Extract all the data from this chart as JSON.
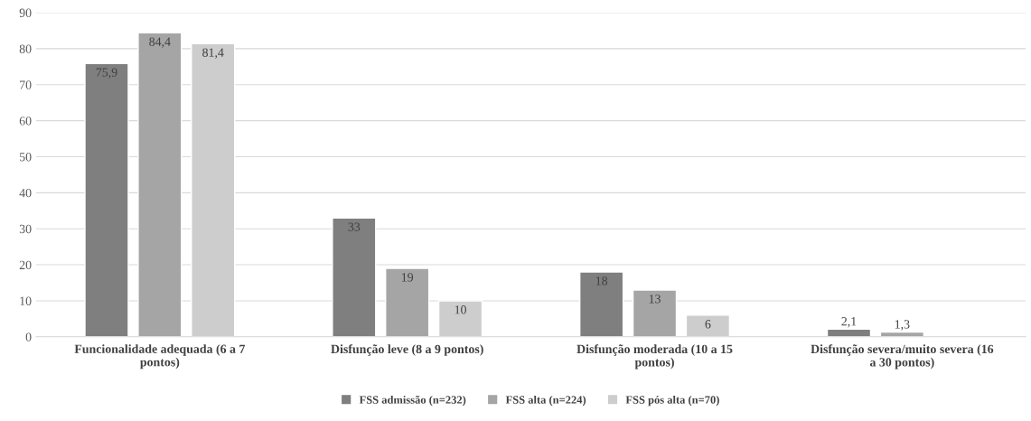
{
  "chart_data": {
    "type": "bar",
    "categories": [
      "Funcionalidade adequada (6 a 7 pontos)",
      "Disfunção leve (8 a 9 pontos)",
      "Disfunção moderada (10 a 15 pontos)",
      "Disfunção severa/muito severa (16 a 30 pontos)"
    ],
    "series": [
      {
        "name": "FSS admissão (n=232)",
        "color": "#7f7f7f",
        "values": [
          75.9,
          33,
          18,
          2.1
        ],
        "value_labels": [
          "75,9",
          "33",
          "18",
          "2,1"
        ]
      },
      {
        "name": "FSS alta (n=224)",
        "color": "#a5a5a5",
        "values": [
          84.4,
          19,
          13,
          1.3
        ],
        "value_labels": [
          "84,4",
          "19",
          "13",
          "1,3"
        ]
      },
      {
        "name": "FSS pós alta (n=70)",
        "color": "#cdcdcd",
        "values": [
          81.4,
          10,
          6,
          null
        ],
        "value_labels": [
          "81,4",
          "10",
          "6",
          null
        ]
      }
    ],
    "ylim": [
      0,
      90
    ],
    "yticks": [
      0,
      10,
      20,
      30,
      40,
      50,
      60,
      70,
      80,
      90
    ],
    "grid": "y",
    "legend": "bottom"
  }
}
